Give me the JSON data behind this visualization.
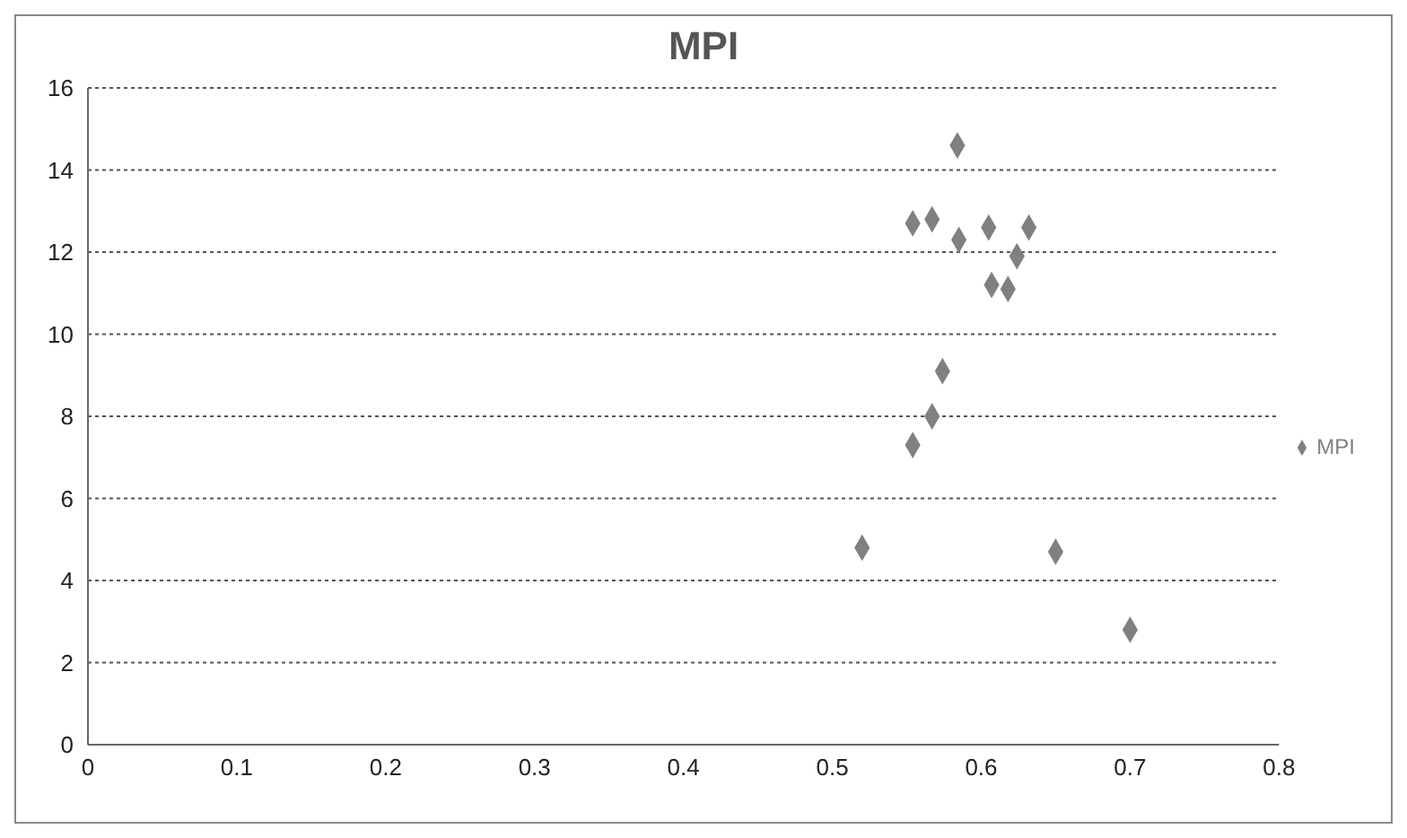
{
  "chart_data": {
    "type": "scatter",
    "title": "MPI",
    "x": [
      0.52,
      0.554,
      0.567,
      0.574,
      0.554,
      0.567,
      0.585,
      0.584,
      0.605,
      0.632,
      0.624,
      0.607,
      0.618,
      0.65,
      0.7
    ],
    "series": [
      {
        "name": "MPI",
        "color": "#808080",
        "values": [
          4.8,
          7.3,
          8.0,
          9.1,
          12.7,
          12.8,
          12.3,
          14.6,
          12.6,
          12.6,
          11.9,
          11.2,
          11.1,
          4.7,
          2.8
        ]
      }
    ],
    "xlim": [
      0,
      0.8
    ],
    "xticks": [
      0,
      0.1,
      0.2,
      0.3,
      0.4,
      0.5,
      0.6,
      0.7,
      0.8
    ],
    "ylim": [
      0,
      16
    ],
    "yticks": [
      0,
      2,
      4,
      6,
      8,
      10,
      12,
      14,
      16
    ],
    "grid": "y",
    "legend": "right",
    "marker": "diamond"
  }
}
